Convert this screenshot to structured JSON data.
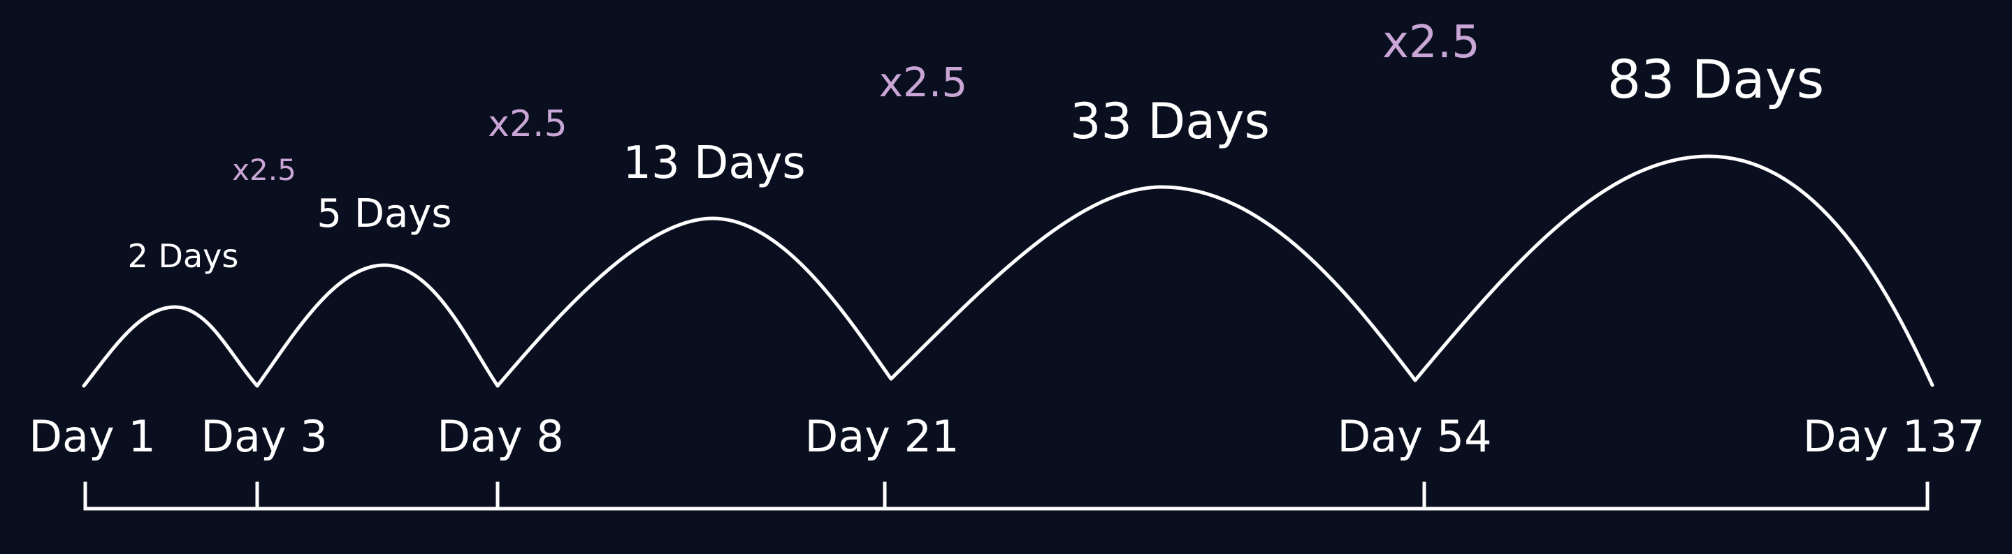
{
  "colors": {
    "background": "#0a0f1f",
    "foreground": "#ffffff",
    "multiplier": "#c9a6d6"
  },
  "days": [
    {
      "label": "Day 1",
      "day": 1
    },
    {
      "label": "Day 3",
      "day": 3
    },
    {
      "label": "Day 8",
      "day": 8
    },
    {
      "label": "Day 21",
      "day": 21
    },
    {
      "label": "Day 54",
      "day": 54
    },
    {
      "label": "Day 137",
      "day": 137
    }
  ],
  "intervals": [
    {
      "label": "2 Days"
    },
    {
      "label": "5 Days"
    },
    {
      "label": "13 Days"
    },
    {
      "label": "33 Days"
    },
    {
      "label": "83 Days"
    }
  ],
  "multipliers": [
    {
      "label": "x2.5"
    },
    {
      "label": "x2.5"
    },
    {
      "label": "x2.5"
    },
    {
      "label": "x2.5"
    }
  ]
}
